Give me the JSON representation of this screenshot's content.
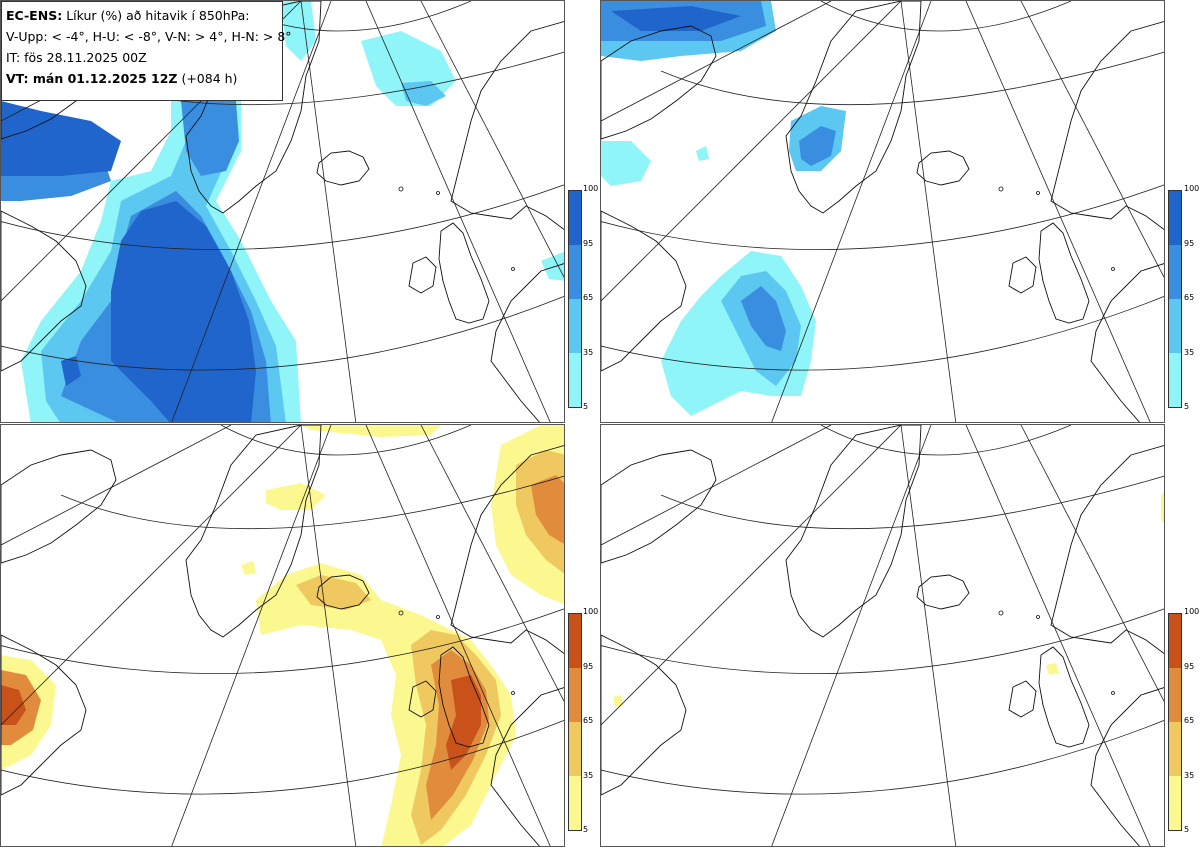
{
  "info": {
    "title_bold": "EC-ENS:",
    "title_rest": "Líkur (%) að hitavik í 850hPa:",
    "categories_line": "V-Upp: < -4°, H-U: < -8°, V-N: > 4°, H-N: > 8°",
    "initial_time": "IT: fös 28.11.2025 00Z",
    "valid_time_bold": "VT: mán 01.12.2025 12Z",
    "valid_time_rest": "(+084 h)"
  },
  "colorbars": {
    "cold": {
      "ticks": [
        "100",
        "95",
        "65",
        "35",
        "5"
      ],
      "colors": [
        "#1f65cc",
        "#3a8ee0",
        "#5cc7f0",
        "#8ff5f8"
      ]
    },
    "warm": {
      "ticks": [
        "100",
        "95",
        "65",
        "35",
        "5"
      ],
      "colors": [
        "#c8521a",
        "#e08c3c",
        "#f0c860",
        "#fcf890"
      ]
    }
  },
  "panels": [
    {
      "name": "cold-anomaly-lt-minus4"
    },
    {
      "name": "cold-anomaly-lt-minus8"
    },
    {
      "name": "warm-anomaly-gt-4"
    },
    {
      "name": "warm-anomaly-gt-8"
    }
  ]
}
